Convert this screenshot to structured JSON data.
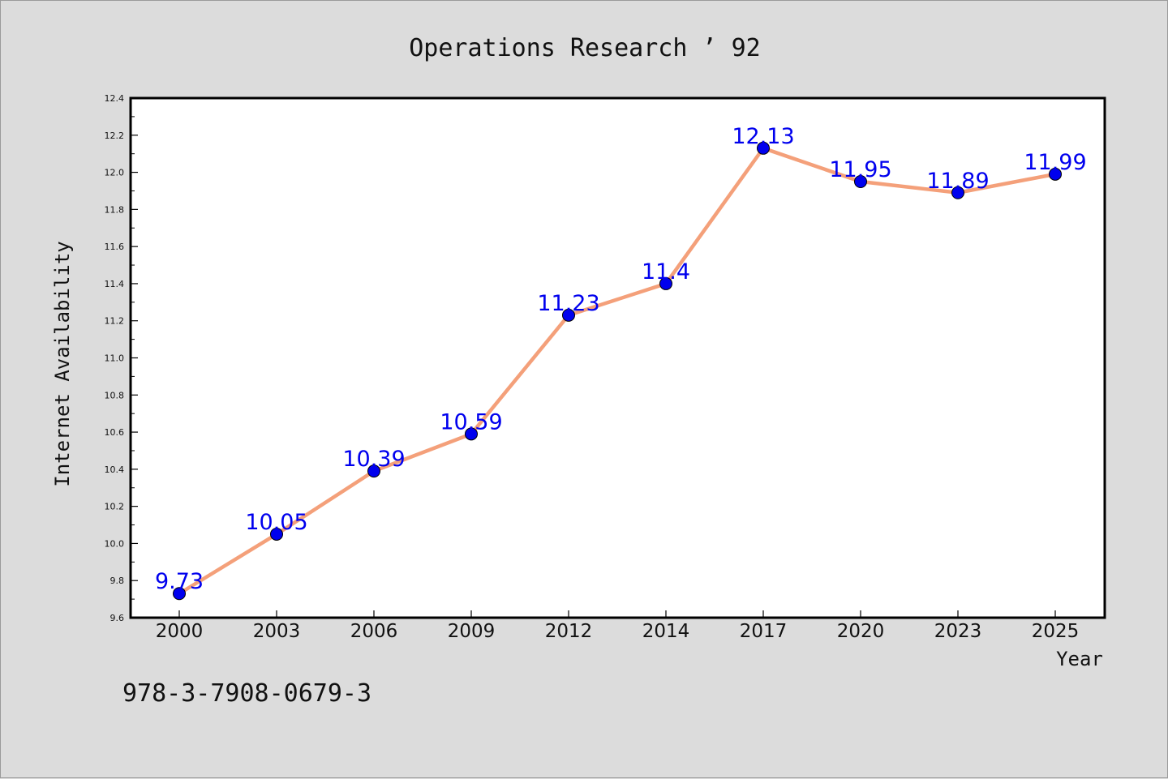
{
  "chart_data": {
    "type": "line",
    "title": "Operations Research ’ 92",
    "xlabel": "Year",
    "ylabel": "Internet Availability",
    "categories": [
      "2000",
      "2003",
      "2006",
      "2009",
      "2012",
      "2014",
      "2017",
      "2020",
      "2023",
      "2025"
    ],
    "series": [
      {
        "values": [
          9.73,
          10.05,
          10.39,
          10.59,
          11.23,
          11.4,
          12.13,
          11.95,
          11.89,
          11.99
        ],
        "labels": [
          "9.73",
          "10.05",
          "10.39",
          "10.59",
          "11.23",
          "11.4",
          "12.13",
          "11.95",
          "11.89",
          "11.99"
        ],
        "line_color": "#f4a07a",
        "marker_color": "#0000ee",
        "label_color": "#0000ee"
      }
    ],
    "ylim": [
      9.6,
      12.4
    ],
    "yticks": [
      "9.6",
      "9.8",
      "10.0",
      "10.2",
      "10.4",
      "10.6",
      "10.8",
      "11.0",
      "11.2",
      "11.4",
      "11.6",
      "11.8",
      "12.0",
      "12.2",
      "12.4"
    ],
    "grid": false,
    "legend": "none"
  },
  "footer": {
    "isbn": "978-3-7908-0679-3"
  },
  "colors": {
    "background": "#dcdcdc",
    "plot_background": "#ffffff",
    "axis": "#000000"
  }
}
